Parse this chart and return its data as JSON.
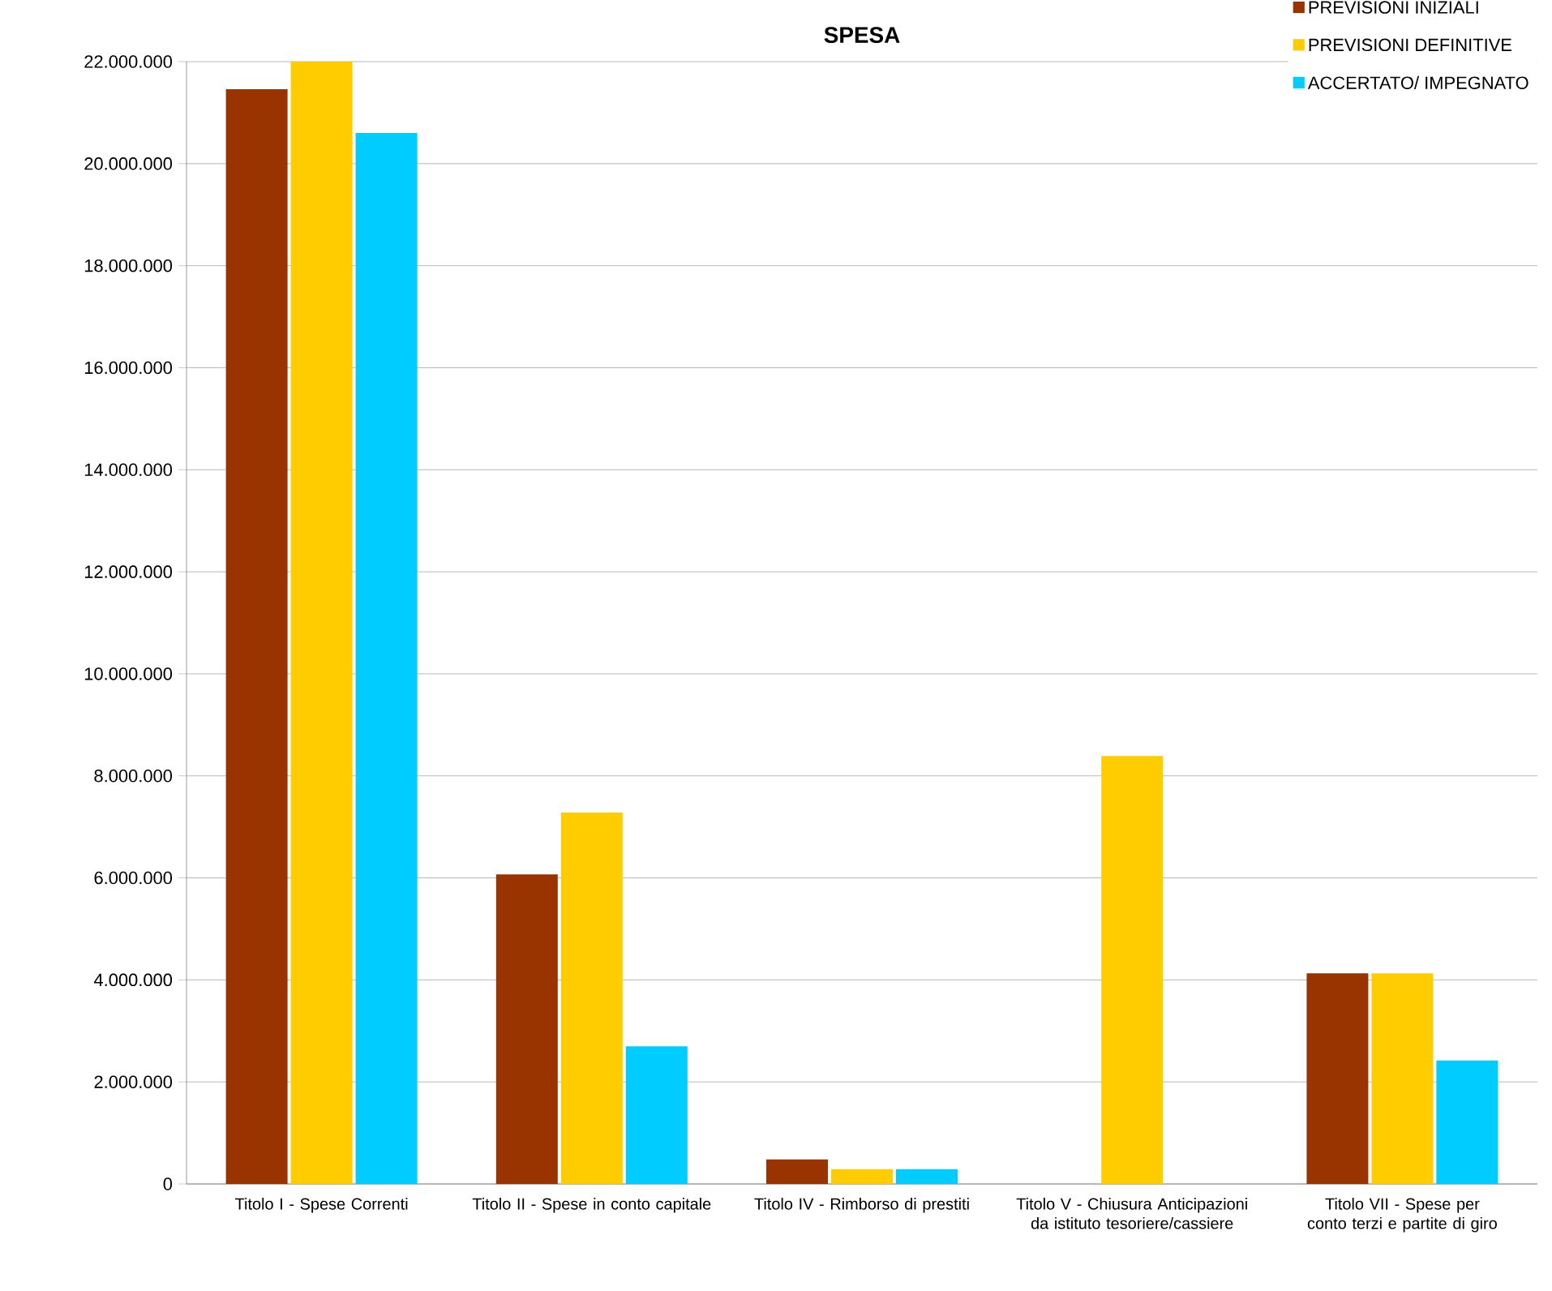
{
  "chart_data": {
    "type": "bar",
    "title": "SPESA",
    "categories": [
      "Titolo I - Spese Correnti",
      "Titolo II - Spese in conto capitale",
      "Titolo IV - Rimborso di prestiti",
      "Titolo V - Chiusura Anticipazioni da istituto tesoriere/cassiere",
      "Titolo VII - Spese per conto terzi e partite di giro"
    ],
    "series": [
      {
        "name": "PREVISIONI INIZIALI",
        "color": "#993300",
        "values": [
          21460000,
          6070000,
          480000,
          0,
          4130000
        ]
      },
      {
        "name": "PREVISIONI DEFINITIVE",
        "color": "#ffcc00",
        "values": [
          22000000,
          7280000,
          290000,
          8390000,
          4130000
        ]
      },
      {
        "name": "ACCERTATO/ IMPEGNATO",
        "color": "#00ccff",
        "values": [
          20600000,
          2700000,
          290000,
          0,
          2420000
        ]
      }
    ],
    "ylim": [
      0,
      22000000
    ],
    "yticks": [
      {
        "value": 0,
        "label": "0"
      },
      {
        "value": 2000000,
        "label": "2.000.000"
      },
      {
        "value": 4000000,
        "label": "4.000.000"
      },
      {
        "value": 6000000,
        "label": "6.000.000"
      },
      {
        "value": 8000000,
        "label": "8.000.000"
      },
      {
        "value": 10000000,
        "label": "10.000.000"
      },
      {
        "value": 12000000,
        "label": "12.000.000"
      },
      {
        "value": 14000000,
        "label": "14.000.000"
      },
      {
        "value": 16000000,
        "label": "16.000.000"
      },
      {
        "value": 18000000,
        "label": "18.000.000"
      },
      {
        "value": 20000000,
        "label": "20.000.000"
      },
      {
        "value": 22000000,
        "label": "22.000.000"
      }
    ],
    "grid": "y",
    "legend": "top right"
  }
}
